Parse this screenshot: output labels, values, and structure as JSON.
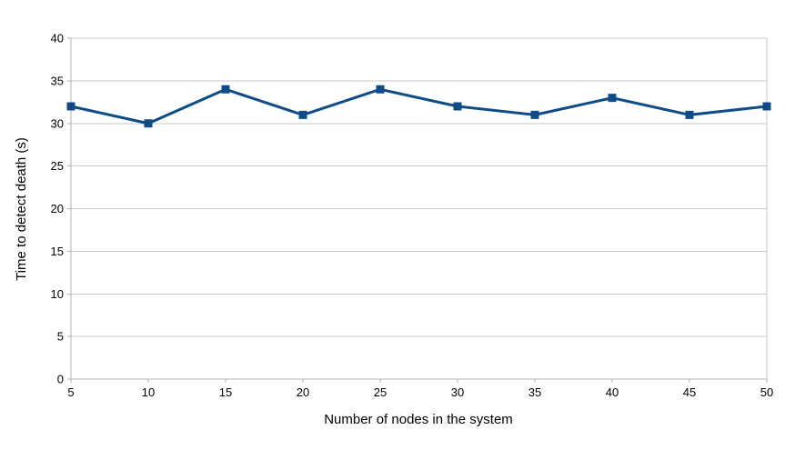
{
  "chart_data": {
    "type": "line",
    "x": [
      5,
      10,
      15,
      20,
      25,
      30,
      35,
      40,
      45,
      50
    ],
    "series": [
      {
        "name": "Time to detect death",
        "values": [
          32,
          30,
          34,
          31,
          34,
          32,
          31,
          33,
          31,
          32
        ]
      }
    ],
    "title": "",
    "xlabel": "Number of nodes in the system",
    "ylabel": "Time to detect death (s)",
    "xlim": [
      5,
      50
    ],
    "ylim": [
      0,
      40
    ],
    "ytick_step": 5,
    "xtick_step": 5,
    "y_ticks": [
      0,
      5,
      10,
      15,
      20,
      25,
      30,
      35,
      40
    ],
    "x_ticks": [
      5,
      10,
      15,
      20,
      25,
      30,
      35,
      40,
      45,
      50
    ],
    "grid": "horizontal",
    "legend": "none",
    "marker": "square",
    "colors": {
      "series": "#0f4c87",
      "gridline": "#c9c9c9",
      "axis": "#b3b3b3",
      "text": "#000000",
      "background": "#ffffff"
    }
  }
}
